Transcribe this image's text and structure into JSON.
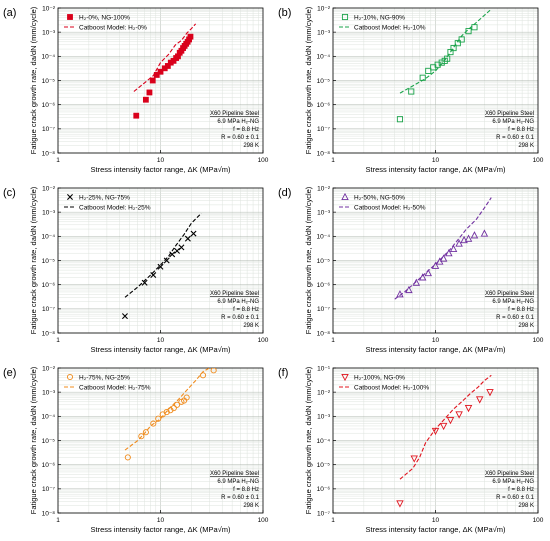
{
  "figure": {
    "panels_order": [
      "a",
      "b",
      "c",
      "d",
      "e",
      "f"
    ]
  },
  "chart_data": [
    {
      "panel": "(a)",
      "type": "scatter",
      "xscale": "log",
      "yscale": "log",
      "xlim": [
        1,
        100
      ],
      "ylim": [
        1e-08,
        0.01
      ],
      "xlabel": "Stress intensity factor range, ΔK (MPa√m)",
      "ylabel": "Fatigue crack growth rate, da/dN (mm/cycle)",
      "xticks": [
        "1",
        "10",
        "100"
      ],
      "yticks": [
        "10⁻⁸",
        "10⁻⁷",
        "10⁻⁶",
        "10⁻⁵",
        "10⁻⁴",
        "10⁻³",
        "10⁻²"
      ],
      "legend_position": "top-left",
      "annotation": [
        "X60 Pipeline Steel",
        "6.9 MPa H₂-NG",
        "f = 8.8 Hz",
        "R = 0.60 ± 0.1",
        "298 K"
      ],
      "color": "#d9001b",
      "marker": "square-filled",
      "series": [
        {
          "name": "H₂-0%, NG-100%",
          "kind": "points",
          "x": [
            5.8,
            7.2,
            7.8,
            8.4,
            9.2,
            10.0,
            11.0,
            11.8,
            12.6,
            13.4,
            14.2,
            14.8,
            15.4,
            16.0,
            16.6,
            17.2,
            17.8,
            18.4,
            19.0,
            19.6
          ],
          "y": [
            3.5e-07,
            1.6e-06,
            3.2e-06,
            1e-05,
            1.7e-05,
            2.3e-05,
            3.2e-05,
            4e-05,
            5.5e-05,
            6.5e-05,
            8.5e-05,
            0.0001,
            0.00014,
            0.00017,
            0.00022,
            0.00027,
            0.00033,
            0.0004,
            0.0005,
            0.00065
          ]
        },
        {
          "name": "Catboost Model: H₂-0%",
          "kind": "dashed-line",
          "x": [
            5.5,
            7,
            8.5,
            10,
            12,
            14,
            16,
            18,
            20,
            22
          ],
          "y": [
            3.5e-06,
            8e-06,
            1.6e-05,
            5.5e-05,
            0.00012,
            0.0003,
            0.00045,
            0.0009,
            0.0014,
            0.0022
          ]
        }
      ]
    },
    {
      "panel": "(b)",
      "type": "scatter",
      "xscale": "log",
      "yscale": "log",
      "xlim": [
        1,
        100
      ],
      "ylim": [
        1e-08,
        0.01
      ],
      "xlabel": "Stress intensity factor range, ΔK (MPa√m)",
      "ylabel": "Fatigue crack growth rate, da/dN (mm/cycle)",
      "xticks": [
        "1",
        "10",
        "100"
      ],
      "yticks": [
        "10⁻⁸",
        "10⁻⁷",
        "10⁻⁶",
        "10⁻⁵",
        "10⁻⁴",
        "10⁻³",
        "10⁻²"
      ],
      "legend_position": "top-left",
      "annotation": [
        "X60 Pipeline Steel",
        "6.9 MPa H₂-NG",
        "f = 8.8 Hz",
        "R = 0.60 ± 0.1",
        "298 K"
      ],
      "color": "#1aa34a",
      "marker": "square-open",
      "series": [
        {
          "name": "H₂-10%, NG-90%",
          "kind": "points",
          "x": [
            4.5,
            5.8,
            7.5,
            8.5,
            9.5,
            10.5,
            11.5,
            12.3,
            13,
            14,
            15,
            16.5,
            18,
            21,
            24
          ],
          "y": [
            2.5e-07,
            3.5e-06,
            1.3e-05,
            2.5e-05,
            3.5e-05,
            4.5e-05,
            5.5e-05,
            6.5e-05,
            8e-05,
            0.00015,
            0.00022,
            0.00035,
            0.0005,
            0.0011,
            0.0016
          ]
        },
        {
          "name": "Catboost Model: H₂-10%",
          "kind": "dashed-line",
          "x": [
            4.5,
            6,
            8,
            10,
            12,
            14,
            16,
            18,
            20,
            25,
            30,
            35
          ],
          "y": [
            3e-06,
            6e-06,
            1.2e-05,
            2.5e-05,
            6e-05,
            0.00015,
            0.00035,
            0.0007,
            0.0011,
            0.0025,
            0.005,
            0.009
          ]
        }
      ]
    },
    {
      "panel": "(c)",
      "type": "scatter",
      "xscale": "log",
      "yscale": "log",
      "xlim": [
        1,
        100
      ],
      "ylim": [
        1e-08,
        0.01
      ],
      "xlabel": "Stress intensity factor range, ΔK (MPa√m)",
      "ylabel": "Fatigue crack growth rate, da/dN (mm/cycle)",
      "xticks": [
        "1",
        "10",
        "100"
      ],
      "yticks": [
        "10⁻⁸",
        "10⁻⁷",
        "10⁻⁶",
        "10⁻⁵",
        "10⁻⁴",
        "10⁻³",
        "10⁻²"
      ],
      "legend_position": "top-left",
      "annotation": [
        "X60 Pipeline Steel",
        "6.9 MPa H₂-NG",
        "f = 8.8 Hz",
        "R = 0.60 ± 0.1",
        "298 K"
      ],
      "color": "#000000",
      "marker": "x",
      "series": [
        {
          "name": "H₂-25%, NG-75%",
          "kind": "points",
          "x": [
            4.5,
            7,
            8.5,
            10,
            11.5,
            13,
            14.5,
            16,
            18.5,
            21
          ],
          "y": [
            5e-08,
            1.2e-06,
            2.5e-06,
            5.5e-06,
            1e-05,
            1.8e-05,
            2.5e-05,
            3.5e-05,
            8e-05,
            0.00013
          ]
        },
        {
          "name": "Catboost Model: H₂-25%",
          "kind": "dashed-line",
          "x": [
            4.5,
            6,
            8,
            10,
            12,
            14,
            17,
            20,
            25
          ],
          "y": [
            3e-07,
            8e-07,
            2.5e-06,
            6.5e-06,
            1.5e-05,
            4e-05,
            0.00012,
            0.00035,
            0.0009
          ]
        }
      ]
    },
    {
      "panel": "(d)",
      "type": "scatter",
      "xscale": "log",
      "yscale": "log",
      "xlim": [
        1,
        100
      ],
      "ylim": [
        1e-08,
        0.01
      ],
      "xlabel": "Stress intensity factor range, ΔK (MPa√m)",
      "ylabel": "Fatigue crack growth rate, da/dN (mm/cycle)",
      "xticks": [
        "1",
        "10",
        "100"
      ],
      "yticks": [
        "10⁻⁸",
        "10⁻⁷",
        "10⁻⁶",
        "10⁻⁵",
        "10⁻⁴",
        "10⁻³",
        "10⁻²"
      ],
      "legend_position": "top-left",
      "annotation": [
        "X60 Pipeline Steel",
        "6.9 MPa H₂-NG",
        "f = 8.8 Hz",
        "R = 0.60 ± 0.1",
        "298 K"
      ],
      "color": "#7030a0",
      "marker": "triangle-up-open",
      "series": [
        {
          "name": "H₂-50%, NG-50%",
          "kind": "points",
          "x": [
            4.5,
            5.5,
            6.5,
            7.5,
            8.5,
            10,
            11,
            12,
            13.5,
            15,
            17,
            19,
            21,
            24,
            30
          ],
          "y": [
            4e-07,
            6e-07,
            1.2e-06,
            2e-06,
            3e-06,
            6e-06,
            9e-06,
            1.2e-05,
            2e-05,
            3e-05,
            5e-05,
            7e-05,
            8e-05,
            0.00011,
            0.00013
          ]
        },
        {
          "name": "Catboost Model: H₂-50%",
          "kind": "dashed-line",
          "x": [
            4,
            5,
            6,
            8,
            10,
            12,
            14,
            16,
            20,
            25,
            30,
            35
          ],
          "y": [
            2.5e-07,
            5e-07,
            1e-06,
            3e-06,
            7e-06,
            1.5e-05,
            3e-05,
            6e-05,
            0.0002,
            0.0005,
            0.0015,
            0.004
          ]
        }
      ]
    },
    {
      "panel": "(e)",
      "type": "scatter",
      "xscale": "log",
      "yscale": "log",
      "xlim": [
        1,
        100
      ],
      "ylim": [
        1e-08,
        0.01
      ],
      "xlabel": "Stress intensity factor range, ΔK (MPa√m)",
      "ylabel": "Fatigue crack growth rate, da/dN (mm/cycle)",
      "xticks": [
        "1",
        "10",
        "100"
      ],
      "yticks": [
        "10⁻⁸",
        "10⁻⁷",
        "10⁻⁶",
        "10⁻⁵",
        "10⁻⁴",
        "10⁻³",
        "10⁻²"
      ],
      "legend_position": "top-left",
      "annotation": [
        "X60 Pipeline Steel",
        "6.9 MPa H₂-NG",
        "f = 8.8 Hz",
        "R = 0.60 ± 0.1",
        "298 K"
      ],
      "color": "#f08c1e",
      "marker": "circle-open",
      "series": [
        {
          "name": "H₂-75%, NG-25%",
          "kind": "points",
          "x": [
            4.8,
            6.5,
            7.2,
            8.5,
            9.5,
            10.5,
            11.5,
            12.5,
            13.5,
            14.5,
            16,
            17,
            18,
            26,
            33
          ],
          "y": [
            2e-06,
            1.5e-05,
            2.2e-05,
            5e-05,
            8e-05,
            0.00012,
            0.00015,
            0.00018,
            0.00022,
            0.0003,
            0.0004,
            0.00045,
            0.0006,
            0.005,
            0.008
          ]
        },
        {
          "name": "Catboost Model: H₂-75%",
          "kind": "dashed-line",
          "x": [
            4.5,
            6,
            7,
            8,
            10,
            12,
            15,
            18,
            22,
            26,
            30
          ],
          "y": [
            4e-06,
            1e-05,
            2e-05,
            4e-05,
            8e-05,
            0.0002,
            0.0005,
            0.0012,
            0.003,
            0.007,
            0.01
          ]
        }
      ]
    },
    {
      "panel": "(f)",
      "type": "scatter",
      "xscale": "log",
      "yscale": "log",
      "xlim": [
        1,
        100
      ],
      "ylim": [
        1e-07,
        0.1
      ],
      "xlabel": "Stress intensity factor range, ΔK (MPa√m)",
      "ylabel": "Fatigue crack growth rate, da/dN (mm/cycle)",
      "xticks": [
        "1",
        "10",
        "100"
      ],
      "yticks": [
        "10⁻⁷",
        "10⁻⁶",
        "10⁻⁵",
        "10⁻⁴",
        "10⁻³",
        "10⁻²",
        "10⁻¹"
      ],
      "legend_position": "top-left",
      "annotation": [
        "X60 Pipeline Steel",
        "6.9 MPa H₂-NG",
        "f = 8.8 Hz",
        "R = 0.60 ± 0.1",
        "298 K"
      ],
      "color": "#e0141e",
      "marker": "triangle-down-open",
      "series": [
        {
          "name": "H₂-100%, NG-0%",
          "kind": "points",
          "x": [
            4.5,
            6.2,
            10,
            12,
            14,
            17,
            21,
            27,
            34
          ],
          "y": [
            2.5e-07,
            1.8e-05,
            0.00025,
            0.0004,
            0.0007,
            0.0012,
            0.0022,
            0.005,
            0.01
          ]
        },
        {
          "name": "Catboost Model: H₂-100%",
          "kind": "dashed-line",
          "x": [
            4.5,
            6,
            7,
            8,
            10,
            12,
            15,
            18,
            22,
            26,
            30,
            35
          ],
          "y": [
            2.5e-06,
            7e-06,
            2e-05,
            8e-05,
            0.0003,
            0.0007,
            0.002,
            0.004,
            0.009,
            0.016,
            0.03,
            0.05
          ]
        }
      ]
    }
  ]
}
